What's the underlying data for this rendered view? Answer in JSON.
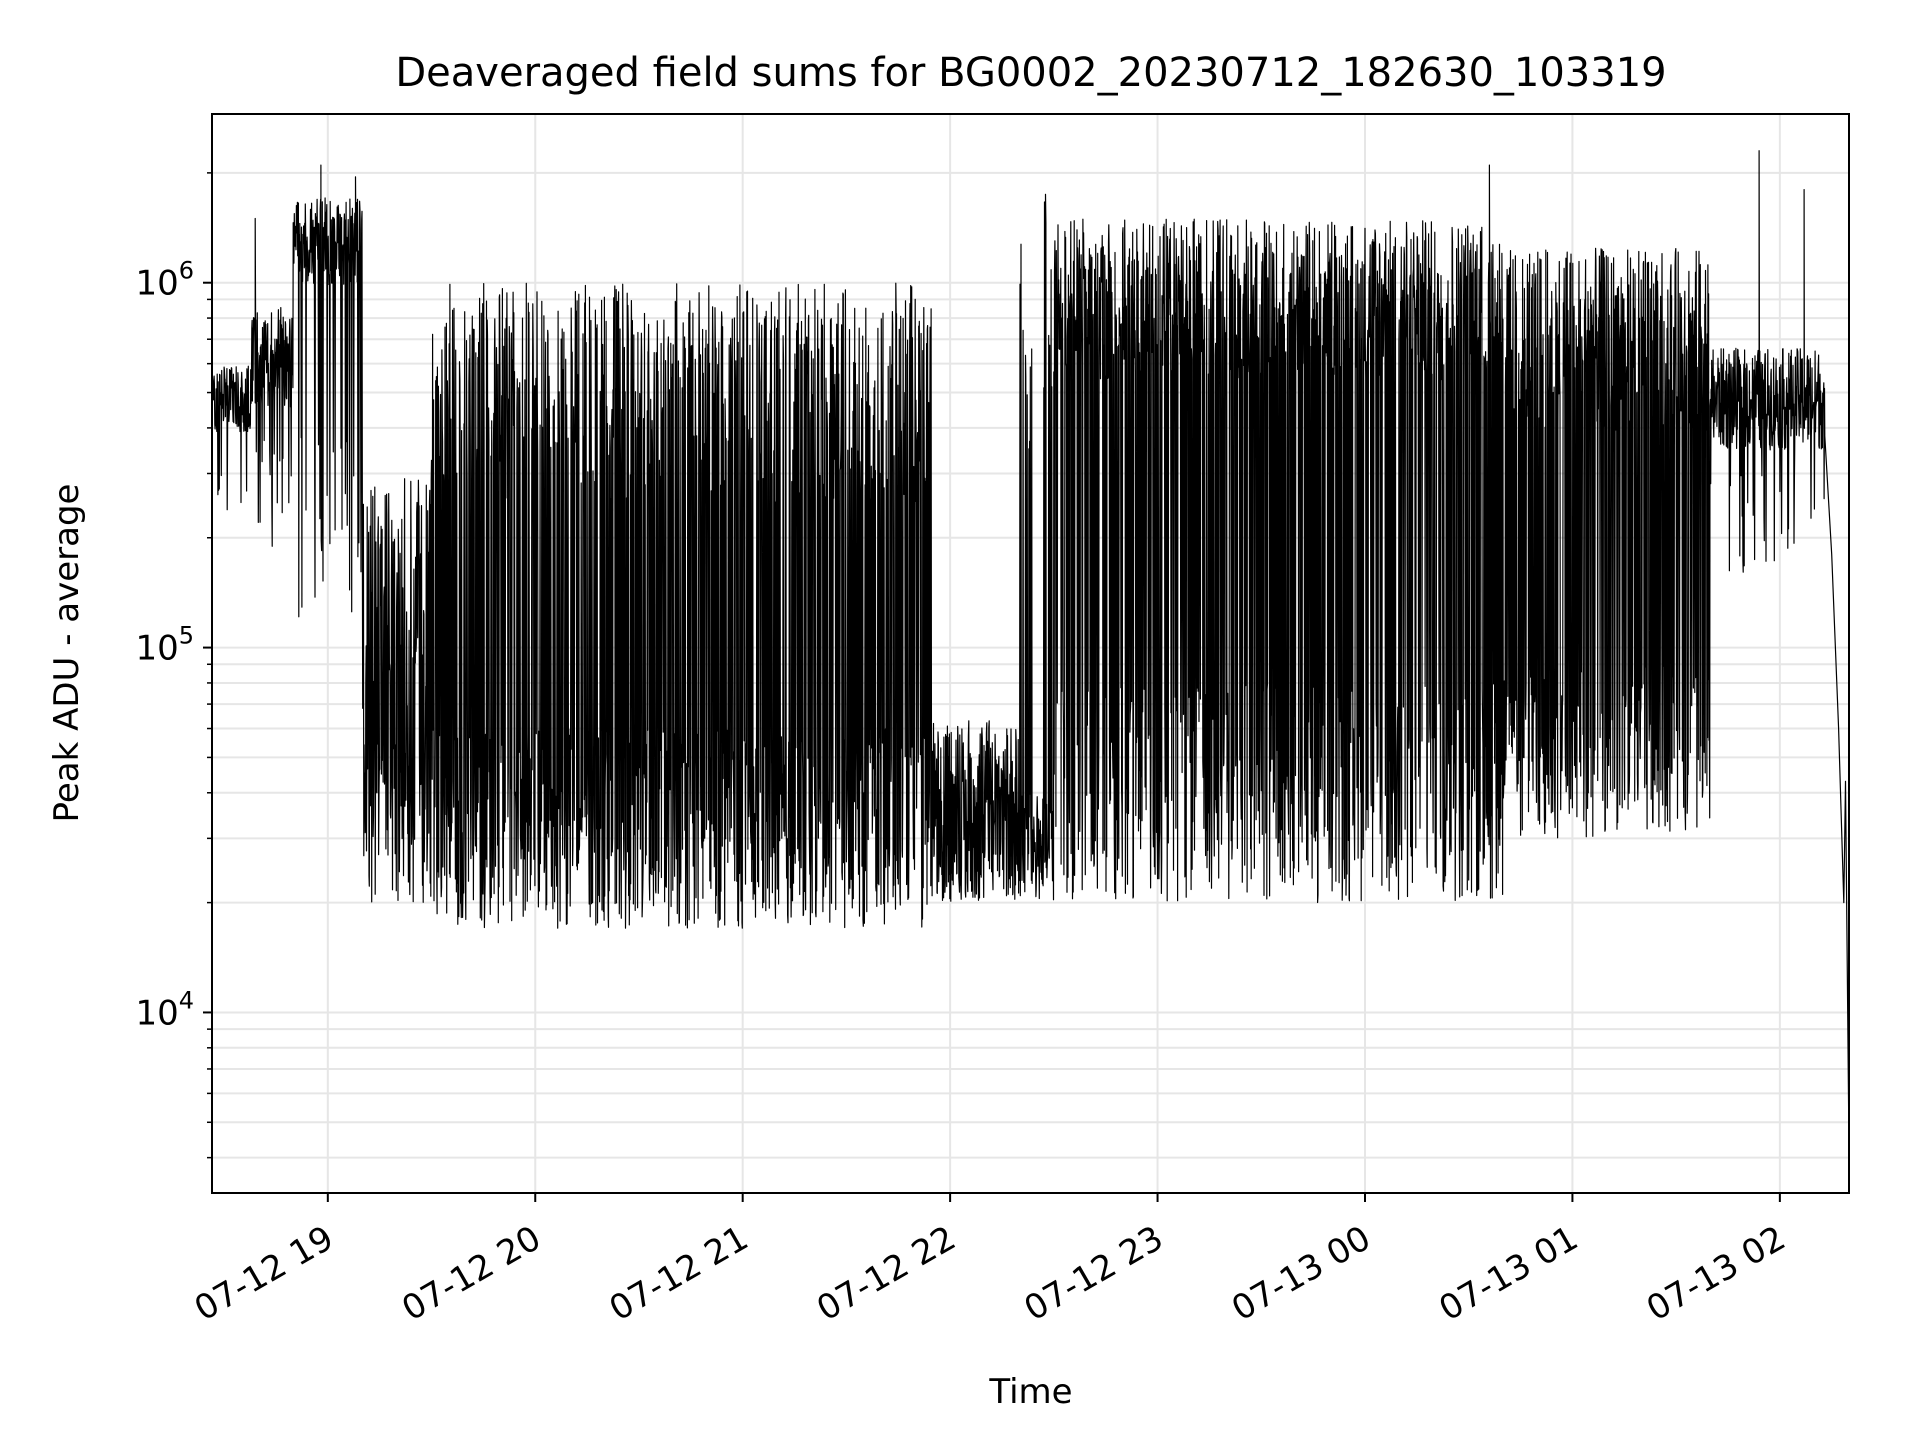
{
  "chart_data": {
    "type": "line",
    "title": "Deaveraged field sums for BG0002_20230712_182630_103319",
    "xlabel": "Time",
    "ylabel": "Peak ADU - average",
    "xscale": "time",
    "yscale": "log",
    "xlim": [
      "2023-07-12 18:26:30",
      "2023-07-13 02:20:00"
    ],
    "ylim": [
      3200,
      2900000
    ],
    "grid": true,
    "legend": "none",
    "line_color": "#000000",
    "grid_color": "#e6e6e6",
    "x_ticks": [
      {
        "value": "2023-07-12 19:00",
        "label": "07-12 19"
      },
      {
        "value": "2023-07-12 20:00",
        "label": "07-12 20"
      },
      {
        "value": "2023-07-12 21:00",
        "label": "07-12 21"
      },
      {
        "value": "2023-07-12 22:00",
        "label": "07-12 22"
      },
      {
        "value": "2023-07-12 23:00",
        "label": "07-12 23"
      },
      {
        "value": "2023-07-13 00:00",
        "label": "07-13 00"
      },
      {
        "value": "2023-07-13 01:00",
        "label": "07-13 01"
      },
      {
        "value": "2023-07-13 02:00",
        "label": "07-13 02"
      }
    ],
    "y_ticks": [
      {
        "value": 10000,
        "base": "10",
        "exp": "4"
      },
      {
        "value": 100000,
        "base": "10",
        "exp": "5"
      },
      {
        "value": 1000000,
        "base": "10",
        "exp": "6"
      }
    ],
    "series": [
      {
        "segments": [
          {
            "start": "2023-07-12 18:26:30",
            "end": "2023-07-12 18:38:00",
            "base": 480000,
            "spread": 0.09,
            "dip_prob": 0.05,
            "dip_min": 180000,
            "dip_max": 300000
          },
          {
            "start": "2023-07-12 18:38:00",
            "end": "2023-07-12 18:50:00",
            "base": 620000,
            "spread": 0.14,
            "dip_prob": 0.1,
            "dip_min": 180000,
            "dip_max": 400000
          },
          {
            "start": "2023-07-12 18:50:00",
            "end": "2023-07-12 19:10:00",
            "base": 1300000,
            "spread": 0.12,
            "dip_prob": 0.16,
            "dip_min": 120000,
            "dip_max": 400000
          },
          {
            "start": "2023-07-12 19:10:00",
            "end": "2023-07-12 19:30:00",
            "base": 120000,
            "spread": 0.4,
            "dip_prob": 0.35,
            "dip_min": 20000,
            "dip_max": 50000
          },
          {
            "start": "2023-07-12 19:30:00",
            "end": "2023-07-12 21:55:00",
            "base": 500000,
            "spread": 0.3,
            "dip_prob": 0.55,
            "dip_min": 17000,
            "dip_max": 60000
          },
          {
            "start": "2023-07-12 21:55:00",
            "end": "2023-07-12 22:20:00",
            "base": 45000,
            "spread": 0.15,
            "dip_prob": 0.4,
            "dip_min": 20000,
            "dip_max": 30000
          },
          {
            "start": "2023-07-12 22:20:00",
            "end": "2023-07-12 22:30:00",
            "base": 700000,
            "spread": 0.4,
            "dip_prob": 0.7,
            "dip_min": 20000,
            "dip_max": 40000
          },
          {
            "start": "2023-07-12 22:30:00",
            "end": "2023-07-13 00:40:00",
            "base": 900000,
            "spread": 0.22,
            "dip_prob": 0.38,
            "dip_min": 20000,
            "dip_max": 80000
          },
          {
            "start": "2023-07-13 00:40:00",
            "end": "2023-07-13 01:40:00",
            "base": 700000,
            "spread": 0.25,
            "dip_prob": 0.45,
            "dip_min": 30000,
            "dip_max": 90000
          },
          {
            "start": "2023-07-13 01:40:00",
            "end": "2023-07-13 02:13:00",
            "base": 480000,
            "spread": 0.14,
            "dip_prob": 0.06,
            "dip_min": 160000,
            "dip_max": 300000
          }
        ],
        "spikes": [
          {
            "time": "2023-07-12 18:39:00",
            "value": 1500000
          },
          {
            "time": "2023-07-12 18:58:00",
            "value": 2100000
          },
          {
            "time": "2023-07-12 19:08:00",
            "value": 1950000
          },
          {
            "time": "2023-07-13 00:36:00",
            "value": 2100000
          },
          {
            "time": "2023-07-13 01:54:00",
            "value": 2300000
          },
          {
            "time": "2023-07-13 02:07:00",
            "value": 1800000
          }
        ],
        "tail": [
          {
            "time": "2023-07-13 02:13:00",
            "value": 380000
          },
          {
            "time": "2023-07-13 02:15:00",
            "value": 180000
          },
          {
            "time": "2023-07-13 02:17:00",
            "value": 60000
          },
          {
            "time": "2023-07-13 02:18:30",
            "value": 20000
          },
          {
            "time": "2023-07-13 02:19:00",
            "value": 43000
          },
          {
            "time": "2023-07-13 02:20:00",
            "value": 4200
          }
        ]
      }
    ]
  }
}
